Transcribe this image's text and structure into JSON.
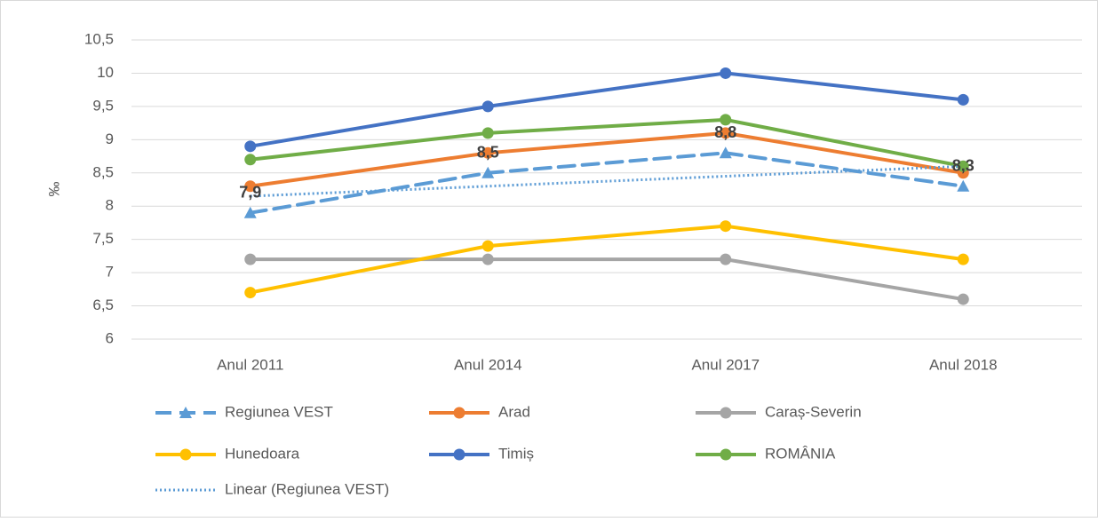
{
  "chart_data": {
    "type": "line",
    "ylabel": "‰",
    "categories": [
      "Anul 2011",
      "Anul 2014",
      "Anul 2017",
      "Anul 2018"
    ],
    "ylim": [
      6,
      10.5
    ],
    "yticks": [
      6,
      {
        "value": 6.5,
        "label": "6,5"
      },
      7,
      {
        "value": 7.5,
        "label": "7,5"
      },
      8,
      {
        "value": 8.5,
        "label": "8,5"
      },
      9,
      {
        "value": 9.5,
        "label": "9,5"
      },
      10,
      {
        "value": 10.5,
        "label": "10,5"
      }
    ],
    "grid": true,
    "legend": "bottom",
    "series": [
      {
        "name": "Regiunea VEST",
        "color": "#5b9bd5",
        "style": "dashed",
        "marker": "triangle",
        "values": [
          7.9,
          8.5,
          8.8,
          8.3
        ],
        "value_labels": [
          "7,9",
          "8,5",
          "8,8",
          "8,3"
        ]
      },
      {
        "name": "Arad",
        "color": "#ed7d31",
        "style": "solid",
        "marker": "circle",
        "values": [
          8.3,
          8.8,
          9.1,
          8.5
        ]
      },
      {
        "name": "Caraș-Severin",
        "color": "#a5a5a5",
        "style": "solid",
        "marker": "circle",
        "values": [
          7.2,
          7.2,
          7.2,
          6.6
        ]
      },
      {
        "name": "Hunedoara",
        "color": "#ffc000",
        "style": "solid",
        "marker": "circle",
        "values": [
          6.7,
          7.4,
          7.7,
          7.2
        ]
      },
      {
        "name": "Timiș",
        "color": "#4472c4",
        "style": "solid",
        "marker": "circle",
        "values": [
          8.9,
          9.5,
          10,
          9.6
        ]
      },
      {
        "name": "ROMÂNIA",
        "color": "#70ad47",
        "style": "solid",
        "marker": "circle",
        "values": [
          8.7,
          9.1,
          9.3,
          8.6
        ]
      },
      {
        "name": "Linear (Regiunea VEST)",
        "color": "#5b9bd5",
        "style": "dotted",
        "marker": "none",
        "values": [
          8.15,
          8.3,
          8.45,
          8.6
        ]
      }
    ]
  }
}
